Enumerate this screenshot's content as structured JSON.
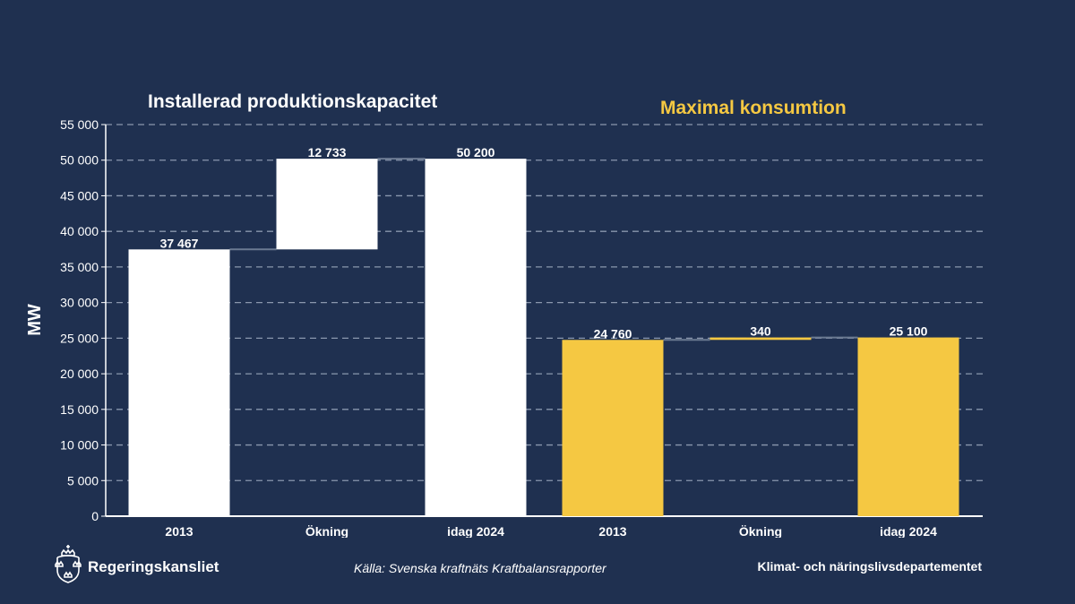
{
  "chart_data": {
    "type": "bar",
    "subtype": "waterfall",
    "ylabel": "MW",
    "ylim": [
      0,
      55000
    ],
    "yticks": [
      0,
      5000,
      10000,
      15000,
      20000,
      25000,
      30000,
      35000,
      40000,
      45000,
      50000,
      55000
    ],
    "ytick_labels": [
      "0",
      "5 000",
      "10 000",
      "15 000",
      "20 000",
      "25 000",
      "30 000",
      "35 000",
      "40 000",
      "45 000",
      "50 000",
      "55 000"
    ],
    "grid": true,
    "groups": [
      {
        "title": "Installerad produktionskapacitet",
        "title_color": "#ffffff",
        "bar_color": "#ffffff",
        "categories": [
          "2013",
          "Ökning",
          "idag 2024"
        ],
        "bars": [
          {
            "base": 0,
            "value": 37467,
            "label": "37 467"
          },
          {
            "base": 37467,
            "value": 12733,
            "label": "12 733"
          },
          {
            "base": 0,
            "value": 50200,
            "label": "50 200"
          }
        ]
      },
      {
        "title": "Maximal konsumtion",
        "title_color": "#f5c842",
        "bar_color": "#f5c842",
        "categories": [
          "2013",
          "Ökning",
          "idag 2024"
        ],
        "bars": [
          {
            "base": 0,
            "value": 24760,
            "label": "24 760"
          },
          {
            "base": 24760,
            "value": 340,
            "label": "340"
          },
          {
            "base": 0,
            "value": 25100,
            "label": "25 100"
          }
        ]
      }
    ]
  },
  "footer": {
    "brand": "Regeringskansliet",
    "source": "Källa: Svenska kraftnäts Kraftbalansrapporter",
    "department": "Klimat- och näringslivsdepartementet"
  },
  "colors": {
    "background": "#1f3050",
    "gridline": "#8a97ad",
    "text": "#ffffff"
  }
}
